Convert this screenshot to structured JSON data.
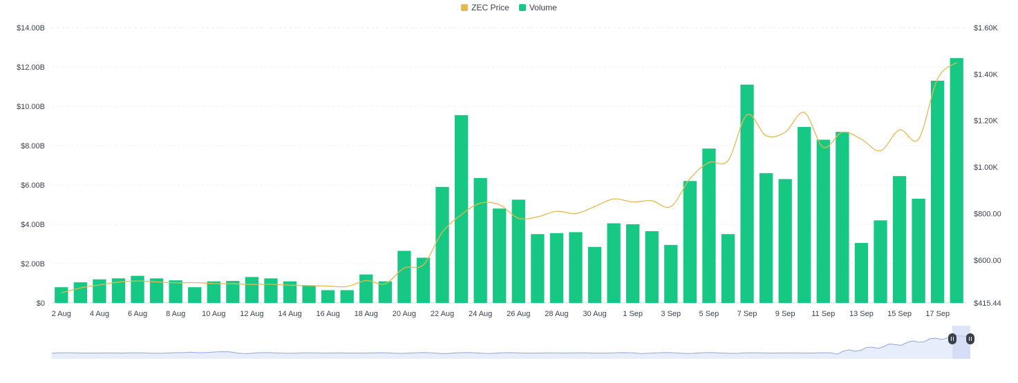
{
  "legend": [
    {
      "label": "ZEC Price",
      "color": "#E6B84D"
    },
    {
      "label": "Volume",
      "color": "#17C784"
    }
  ],
  "chart_data": {
    "type": "bar",
    "categories": [
      "2 Aug",
      "3 Aug",
      "4 Aug",
      "5 Aug",
      "6 Aug",
      "7 Aug",
      "8 Aug",
      "9 Aug",
      "10 Aug",
      "11 Aug",
      "12 Aug",
      "13 Aug",
      "14 Aug",
      "15 Aug",
      "16 Aug",
      "17 Aug",
      "18 Aug",
      "19 Aug",
      "20 Aug",
      "21 Aug",
      "22 Aug",
      "23 Aug",
      "24 Aug",
      "25 Aug",
      "26 Aug",
      "27 Aug",
      "28 Aug",
      "29 Aug",
      "30 Aug",
      "31 Aug",
      "1 Sep",
      "2 Sep",
      "3 Sep",
      "4 Sep",
      "5 Sep",
      "6 Sep",
      "7 Sep",
      "8 Sep",
      "9 Sep",
      "10 Sep",
      "11 Sep",
      "12 Sep",
      "13 Sep",
      "14 Sep",
      "15 Sep",
      "16 Sep",
      "17 Sep",
      "18 Sep"
    ],
    "x_tick_labels": [
      "2 Aug",
      "4 Aug",
      "6 Aug",
      "8 Aug",
      "10 Aug",
      "12 Aug",
      "14 Aug",
      "16 Aug",
      "18 Aug",
      "20 Aug",
      "22 Aug",
      "24 Aug",
      "26 Aug",
      "28 Aug",
      "30 Aug",
      "1 Sep",
      "3 Sep",
      "5 Sep",
      "7 Sep",
      "9 Sep",
      "11 Sep",
      "13 Sep",
      "15 Sep",
      "17 Sep"
    ],
    "series": [
      {
        "name": "Volume",
        "axis": "left",
        "kind": "bar",
        "color": "#17C784",
        "values": [
          0.8,
          1.05,
          1.2,
          1.25,
          1.38,
          1.25,
          1.15,
          0.8,
          1.1,
          1.12,
          1.32,
          1.25,
          1.1,
          0.9,
          0.65,
          0.65,
          1.45,
          1.1,
          2.65,
          2.3,
          5.9,
          9.55,
          6.35,
          4.8,
          5.25,
          3.5,
          3.55,
          3.6,
          2.85,
          4.05,
          4.0,
          3.65,
          2.95,
          6.2,
          7.85,
          3.5,
          11.1,
          6.6,
          6.3,
          8.95,
          8.3,
          8.7,
          3.05,
          4.2,
          6.45,
          5.3,
          11.3,
          12.45
        ]
      },
      {
        "name": "ZEC Price",
        "axis": "right",
        "kind": "line",
        "color": "#E6B84D",
        "values": [
          459,
          480,
          493,
          505,
          510,
          506,
          502,
          503,
          499,
          498,
          495,
          496,
          492,
          490,
          488,
          486,
          512,
          498,
          566,
          579,
          720,
          795,
          845,
          838,
          780,
          786,
          810,
          800,
          830,
          863,
          850,
          855,
          830,
          950,
          1020,
          1028,
          1225,
          1135,
          1150,
          1235,
          1085,
          1150,
          1120,
          1070,
          1160,
          1120,
          1380,
          1450
        ]
      }
    ],
    "y_left": {
      "ticks": [
        "$0",
        "$2.00B",
        "$4.00B",
        "$6.00B",
        "$8.00B",
        "$10.00B",
        "$12.00B",
        "$14.00B"
      ],
      "range": [
        0,
        14
      ],
      "unit": "B"
    },
    "y_right": {
      "ticks": [
        "$415.44",
        "$600.00",
        "$800.00",
        "$1.00K",
        "$1.20K",
        "$1.40K",
        "$1.60K"
      ],
      "range": [
        415.44,
        1600
      ]
    },
    "grid": true,
    "legend_position": "top-center",
    "navigator": {
      "present": true,
      "selection": "end"
    }
  }
}
